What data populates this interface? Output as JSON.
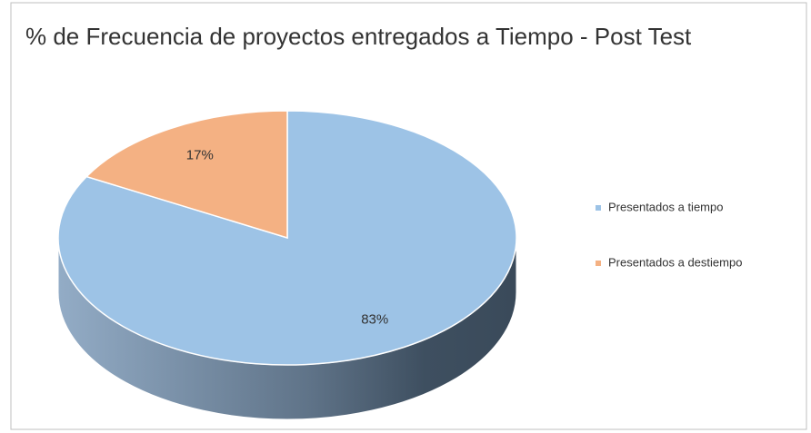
{
  "chart_data": {
    "type": "pie",
    "title": "% de Frecuencia de proyectos entregados a Tiempo - Post Test",
    "categories": [
      "Presentados a tiempo",
      "Presentados a destiempo"
    ],
    "values": [
      83,
      17
    ],
    "value_labels": [
      "83%",
      "17%"
    ],
    "colors": [
      "#9dc3e6",
      "#f4b183"
    ]
  }
}
